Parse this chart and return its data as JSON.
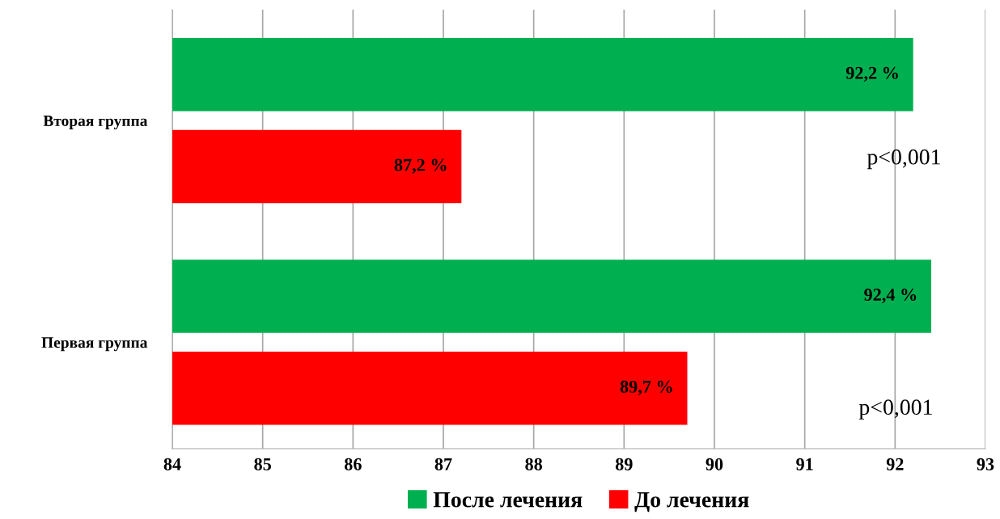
{
  "chart_data": {
    "type": "bar",
    "orientation": "horizontal",
    "categories": [
      "Вторая группа",
      "Первая группа"
    ],
    "series": [
      {
        "name": "После лечения",
        "color": "#00b050",
        "values": [
          92.2,
          92.4
        ],
        "value_labels": [
          "92,2 %",
          "92,4 %"
        ]
      },
      {
        "name": "До лечения",
        "color": "#ff0000",
        "values": [
          87.2,
          89.7
        ],
        "value_labels": [
          "87,2 %",
          "89,7 %"
        ]
      }
    ],
    "xlim": [
      84,
      93
    ],
    "xticks": [
      84,
      85,
      86,
      87,
      88,
      89,
      90,
      91,
      92,
      93
    ],
    "grid": "x",
    "legend": "bottom",
    "annotations": [
      "p<0,001",
      "p<0,001"
    ]
  }
}
